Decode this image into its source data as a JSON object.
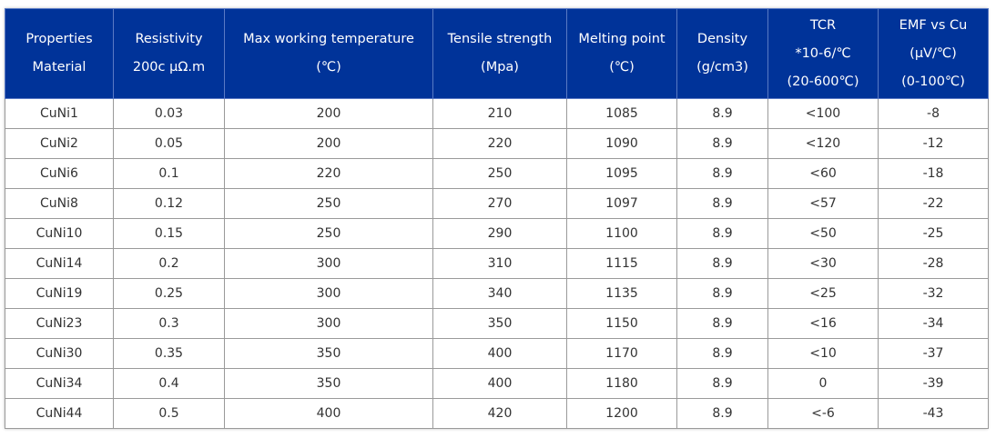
{
  "columns": [
    {
      "lines": [
        "Properties",
        "Material"
      ]
    },
    {
      "lines": [
        "Resistivity",
        "200c μΩ.m"
      ]
    },
    {
      "lines": [
        "Max working temperature",
        "(℃)"
      ]
    },
    {
      "lines": [
        "Tensile strength",
        "(Mpa)"
      ]
    },
    {
      "lines": [
        "Melting point",
        "(℃)"
      ]
    },
    {
      "lines": [
        "Density",
        "(g/cm3)"
      ]
    },
    {
      "lines": [
        "TCR",
        "*10-6/℃",
        "(20-600℃)"
      ]
    },
    {
      "lines": [
        "EMF vs Cu",
        "(μV/℃)",
        "(0-100℃)"
      ]
    }
  ],
  "rows": [
    [
      "CuNi1",
      "0.03",
      "200",
      "210",
      "1085",
      "8.9",
      "<100",
      "-8"
    ],
    [
      "CuNi2",
      "0.05",
      "200",
      "220",
      "1090",
      "8.9",
      "<120",
      "-12"
    ],
    [
      "CuNi6",
      "0.1",
      "220",
      "250",
      "1095",
      "8.9",
      "<60",
      "-18"
    ],
    [
      "CuNi8",
      "0.12",
      "250",
      "270",
      "1097",
      "8.9",
      "<57",
      "-22"
    ],
    [
      "CuNi10",
      "0.15",
      "250",
      "290",
      "1100",
      "8.9",
      "<50",
      "-25"
    ],
    [
      "CuNi14",
      "0.2",
      "300",
      "310",
      "1115",
      "8.9",
      "<30",
      "-28"
    ],
    [
      "CuNi19",
      "0.25",
      "300",
      "340",
      "1135",
      "8.9",
      "<25",
      "-32"
    ],
    [
      "CuNi23",
      "0.3",
      "300",
      "350",
      "1150",
      "8.9",
      "<16",
      "-34"
    ],
    [
      "CuNi30",
      "0.35",
      "350",
      "400",
      "1170",
      "8.9",
      "<10",
      "-37"
    ],
    [
      "CuNi34",
      "0.4",
      "350",
      "400",
      "1180",
      "8.9",
      "0",
      "-39"
    ],
    [
      "CuNi44",
      "0.5",
      "400",
      "420",
      "1200",
      "8.9",
      "<-6",
      "-43"
    ]
  ],
  "colors": {
    "header_bg": "#003399",
    "header_text": "#ffffff",
    "cell_text": "#333333",
    "border": "#9a9a9a"
  }
}
